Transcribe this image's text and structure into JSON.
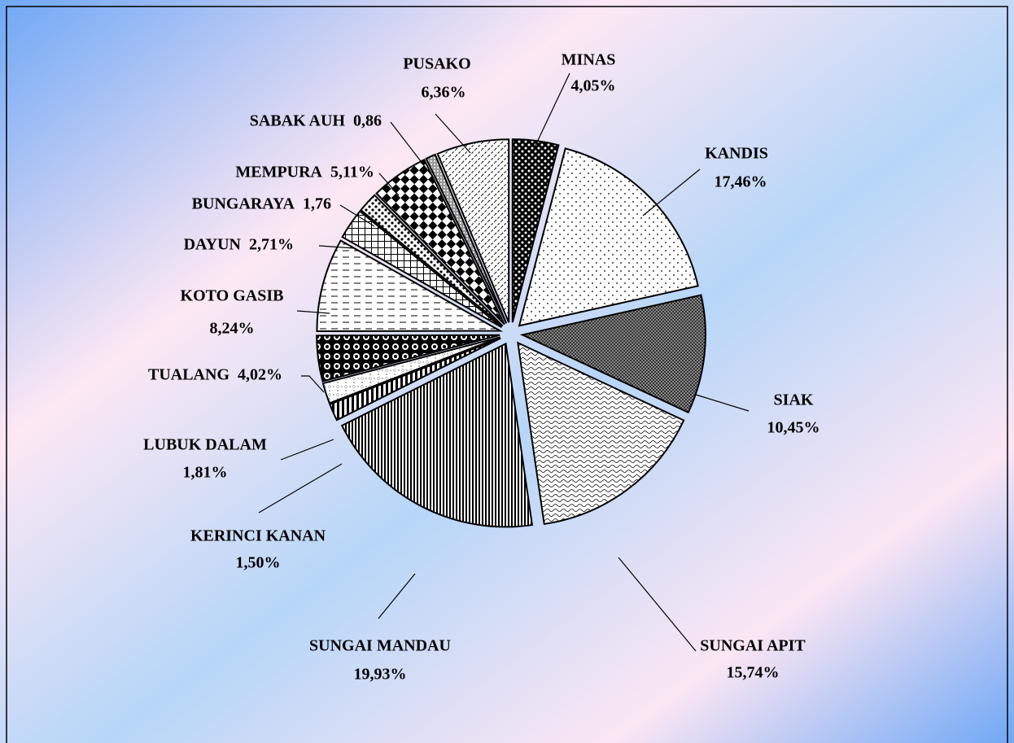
{
  "chart_data": {
    "type": "pie",
    "categories": [
      "MINAS",
      "KANDIS",
      "SIAK",
      "SUNGAI APIT",
      "SUNGAI MANDAU",
      "KERINCI KANAN",
      "LUBUK DALAM",
      "TUALANG",
      "KOTO GASIB",
      "DAYUN",
      "BUNGARAYA",
      "MEMPURA",
      "SABAK AUH",
      "PUSAKO"
    ],
    "values": [
      4.05,
      17.46,
      10.45,
      15.74,
      19.93,
      1.5,
      1.81,
      4.02,
      8.24,
      2.71,
      1.76,
      5.11,
      0.86,
      6.36
    ],
    "value_labels": [
      "4,05%",
      "17,46%",
      "10,45%",
      "15,74%",
      "19,93%",
      "1,50%",
      "1,81%",
      "4,02%",
      "8,24%",
      "2,71%",
      "1,76",
      "5,11%",
      "0,86",
      "6,36%"
    ]
  }
}
